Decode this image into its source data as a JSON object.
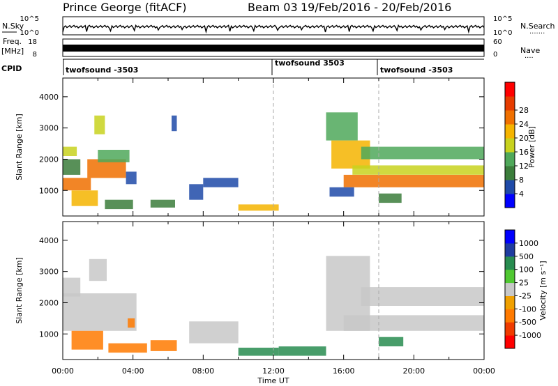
{
  "header": {
    "station": "Prince George (fitACF)",
    "beam": "Beam 03",
    "date_range": "19/Feb/2016 - 20/Feb/2016"
  },
  "strip_sky": {
    "left_label": "N.Sky",
    "right_label": "N.Search",
    "right_legend": "·······",
    "tick_top_left": "10^5",
    "tick_bottom_left": "10^0",
    "tick_top_right": "10^5",
    "tick_bottom_right": "10^0"
  },
  "strip_freq": {
    "left_label_top": "Freq.",
    "left_label_bottom": "[MHz]",
    "right_label": "Nave",
    "right_legend": "····",
    "tick_top_left": "18",
    "tick_bottom_left": "8",
    "tick_top_right": "60",
    "tick_bottom_right": "0"
  },
  "cpid": {
    "label": "CPID",
    "segments": [
      "twofsound -3503",
      "twofsound 3503",
      "twofsound -3503"
    ]
  },
  "colors": {
    "power_scale": [
      "#0000ff",
      "#1f4aa8",
      "#3b7d3b",
      "#4fa85a",
      "#c8d21e",
      "#f5b400",
      "#f07000",
      "#e63c00",
      "#ff0000"
    ],
    "velocity_scale": [
      "#ff0000",
      "#f03c00",
      "#ff7a00",
      "#f0a000",
      "#c8c8c8",
      "#50c832",
      "#288c50",
      "#1f3ca0",
      "#0000ff"
    ]
  },
  "chart_data": [
    {
      "type": "heatmap",
      "title": "",
      "xlabel": "Time UT",
      "ylabel": "Slant Range [km]",
      "x_ticks": [
        "00:00",
        "04:00",
        "08:00",
        "12:00",
        "16:00",
        "20:00",
        "00:00"
      ],
      "y_ticks": [
        "1000",
        "2000",
        "3000",
        "4000"
      ],
      "ylim": [
        180,
        4600
      ],
      "colorbar_label": "Power [dB]",
      "colorbar_ticks": [
        "4",
        "8",
        "12",
        "16",
        "20",
        "24",
        "28"
      ],
      "cpid_boundaries_ut_hours": [
        12.0,
        18.0
      ],
      "regions": [
        {
          "t0": 0.0,
          "t1": 1.6,
          "r0": 1000,
          "r1": 1400,
          "value": 26
        },
        {
          "t0": 0.5,
          "t1": 2.0,
          "r0": 500,
          "r1": 1000,
          "value": 22
        },
        {
          "t0": 0.0,
          "t1": 1.0,
          "r0": 1500,
          "r1": 2000,
          "value": 12
        },
        {
          "t0": 0.0,
          "t1": 0.8,
          "r0": 2100,
          "r1": 2400,
          "value": 16
        },
        {
          "t0": 1.4,
          "t1": 3.6,
          "r0": 1400,
          "r1": 2000,
          "value": 24
        },
        {
          "t0": 2.0,
          "t1": 3.8,
          "r0": 1900,
          "r1": 2300,
          "value": 14
        },
        {
          "t0": 1.8,
          "t1": 2.4,
          "r0": 2800,
          "r1": 3400,
          "value": 16
        },
        {
          "t0": 2.4,
          "t1": 4.0,
          "r0": 400,
          "r1": 700,
          "value": 10
        },
        {
          "t0": 3.6,
          "t1": 4.2,
          "r0": 1200,
          "r1": 1600,
          "value": 8
        },
        {
          "t0": 5.0,
          "t1": 6.4,
          "r0": 450,
          "r1": 700,
          "value": 10
        },
        {
          "t0": 7.2,
          "t1": 8.0,
          "r0": 700,
          "r1": 1200,
          "value": 8
        },
        {
          "t0": 8.0,
          "t1": 10.0,
          "r0": 1100,
          "r1": 1400,
          "value": 8
        },
        {
          "t0": 6.2,
          "t1": 6.5,
          "r0": 2900,
          "r1": 3400,
          "value": 6
        },
        {
          "t0": 10.0,
          "t1": 12.3,
          "r0": 350,
          "r1": 550,
          "value": 22
        },
        {
          "t0": 15.0,
          "t1": 16.8,
          "r0": 2600,
          "r1": 3500,
          "value": 14
        },
        {
          "t0": 15.3,
          "t1": 17.5,
          "r0": 1700,
          "r1": 2600,
          "value": 20
        },
        {
          "t0": 16.0,
          "t1": 24.0,
          "r0": 1100,
          "r1": 1500,
          "value": 26
        },
        {
          "t0": 16.5,
          "t1": 24.0,
          "r0": 1500,
          "r1": 1800,
          "value": 16
        },
        {
          "t0": 17.0,
          "t1": 24.0,
          "r0": 2000,
          "r1": 2400,
          "value": 14
        },
        {
          "t0": 15.2,
          "t1": 16.6,
          "r0": 800,
          "r1": 1100,
          "value": 8
        },
        {
          "t0": 18.0,
          "t1": 19.3,
          "r0": 600,
          "r1": 900,
          "value": 12
        }
      ]
    },
    {
      "type": "heatmap",
      "title": "",
      "xlabel": "Time UT",
      "ylabel": "Slant Range [km]",
      "x_ticks": [
        "00:00",
        "04:00",
        "08:00",
        "12:00",
        "16:00",
        "20:00",
        "00:00"
      ],
      "y_ticks": [
        "1000",
        "2000",
        "3000",
        "4000"
      ],
      "ylim": [
        180,
        4600
      ],
      "colorbar_label": "Velocity [m s⁻¹]",
      "colorbar_ticks": [
        "1000",
        "500",
        "100",
        "25",
        "-25",
        "-100",
        "-500",
        "-1000"
      ],
      "cpid_boundaries_ut_hours": [
        12.0,
        18.0
      ],
      "regions": [
        {
          "t0": 0.0,
          "t1": 4.2,
          "r0": 1100,
          "r1": 2300,
          "value": 0
        },
        {
          "t0": 0.0,
          "t1": 1.0,
          "r0": 2200,
          "r1": 2800,
          "value": 0
        },
        {
          "t0": 1.5,
          "t1": 2.5,
          "r0": 2700,
          "r1": 3400,
          "value": 0
        },
        {
          "t0": 0.5,
          "t1": 2.3,
          "r0": 500,
          "r1": 1100,
          "value": -300
        },
        {
          "t0": 2.6,
          "t1": 4.8,
          "r0": 400,
          "r1": 700,
          "value": -150
        },
        {
          "t0": 3.7,
          "t1": 4.1,
          "r0": 1200,
          "r1": 1500,
          "value": -400
        },
        {
          "t0": 5.0,
          "t1": 6.5,
          "r0": 450,
          "r1": 800,
          "value": -150
        },
        {
          "t0": 7.2,
          "t1": 10.0,
          "r0": 700,
          "r1": 1400,
          "value": 0
        },
        {
          "t0": 10.0,
          "t1": 12.3,
          "r0": 300,
          "r1": 560,
          "value": 150
        },
        {
          "t0": 12.3,
          "t1": 15.0,
          "r0": 300,
          "r1": 600,
          "value": 120
        },
        {
          "t0": 15.0,
          "t1": 17.5,
          "r0": 1100,
          "r1": 3500,
          "value": 0
        },
        {
          "t0": 16.0,
          "t1": 24.0,
          "r0": 1100,
          "r1": 1600,
          "value": 0
        },
        {
          "t0": 17.0,
          "t1": 24.0,
          "r0": 1900,
          "r1": 2500,
          "value": 0
        },
        {
          "t0": 18.0,
          "t1": 19.4,
          "r0": 600,
          "r1": 900,
          "value": 120
        }
      ]
    }
  ]
}
